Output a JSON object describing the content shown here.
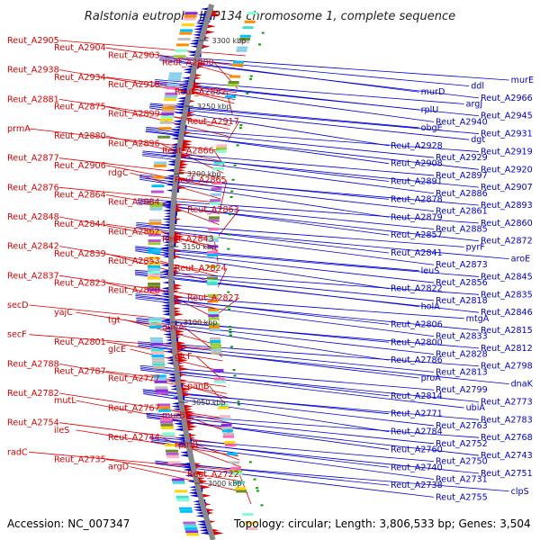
{
  "title": "Ralstonia eutropha JMP134 chromosome 1, complete sequence",
  "footer": {
    "accession": "Accession: NC_007347",
    "summary": "Topology: circular; Length: 3,806,533 bp; Genes: 3,504"
  },
  "colors": {
    "forward": "#e00000",
    "reverse": "#0000d8",
    "backbone": "#888888",
    "tick_mark": "#00a000"
  },
  "scale_marks": [
    {
      "label": "3300 kbp",
      "kbp": 3300
    },
    {
      "label": "3250 kbp",
      "kbp": 3250
    },
    {
      "label": "3200 kbp",
      "kbp": 3200
    },
    {
      "label": "3150 kbp",
      "kbp": 3150
    },
    {
      "label": "3100 kbp",
      "kbp": 3100
    },
    {
      "label": "3050 kbp",
      "kbp": 3050
    },
    {
      "label": "3000 kbp",
      "kbp": 3000
    }
  ],
  "forward_labels": [
    "Reut_A2905",
    "Reut_A2904",
    "Reut_A2903",
    "Reut_A2900",
    "Reut_A2938",
    "Reut_A2934",
    "Reut_A2918",
    "Reut_A2882",
    "Reut_A2881",
    "Reut_A2875",
    "Reut_A2899",
    "Reut_A2917",
    "prmA",
    "Reut_A2880",
    "Reut_A2896",
    "Reut_A2866",
    "Reut_A2877",
    "Reut_A2906",
    "rdgC",
    "Reut_A2865",
    "Reut_A2876",
    "Reut_A2864",
    "Reut_A2884",
    "Reut_A2863",
    "Reut_A2848",
    "Reut_A2844",
    "Reut_A2862",
    "Reut_A2843",
    "Reut_A2842",
    "Reut_A2839",
    "Reut_A2853",
    "Reut_A2824",
    "Reut_A2837",
    "Reut_A2823",
    "Reut_A2820",
    "Reut_A2827",
    "secD",
    "yajC",
    "tgt",
    "queA",
    "secF",
    "Reut_A2801",
    "glcE",
    "glcF",
    "Reut_A2788",
    "Reut_A2787",
    "Reut_A2777",
    "panB",
    "Reut_A2782",
    "mutL",
    "Reut_A2767",
    "murB",
    "Reut_A2754",
    "ileS",
    "Reut_A2744",
    "rpmB",
    "radC",
    "Reut_A2735",
    "argD",
    "Reut_A2722"
  ],
  "reverse_labels": [
    "murE",
    "ddl",
    "murD",
    "Reut_A2966",
    "argJ",
    "rplU",
    "Reut_A2945",
    "Reut_A2940",
    "obgE",
    "Reut_A2931",
    "dgt",
    "Reut_A2928",
    "Reut_A2919",
    "Reut_A2929",
    "Reut_A2908",
    "Reut_A2920",
    "Reut_A2897",
    "Reut_A2891",
    "Reut_A2907",
    "Reut_A2886",
    "Reut_A2878",
    "Reut_A2893",
    "Reut_A2861",
    "Reut_A2879",
    "Reut_A2860",
    "Reut_A2885",
    "Reut_A2857",
    "Reut_A2872",
    "pyrF",
    "Reut_A2841",
    "aroE",
    "Reut_A2873",
    "leuS",
    "Reut_A2845",
    "Reut_A2856",
    "Reut_A2822",
    "Reut_A2835",
    "Reut_A2818",
    "holA",
    "Reut_A2846",
    "mtgA",
    "Reut_A2806",
    "Reut_A2815",
    "Reut_A2833",
    "Reut_A2800",
    "Reut_A2812",
    "Reut_A2828",
    "Reut_A2786",
    "Reut_A2798",
    "Reut_A2813",
    "proA",
    "dnaK",
    "Reut_A2799",
    "Reut_A2814",
    "Reut_A2773",
    "ubiA",
    "Reut_A2771",
    "Reut_A2783",
    "Reut_A2763",
    "Reut_A2784",
    "Reut_A2768",
    "Reut_A2752",
    "Reut_A2760",
    "Reut_A2743",
    "Reut_A2750",
    "Reut_A2740",
    "Reut_A2751",
    "Reut_A2731",
    "Reut_A2738",
    "clpS",
    "Reut_A2755"
  ]
}
